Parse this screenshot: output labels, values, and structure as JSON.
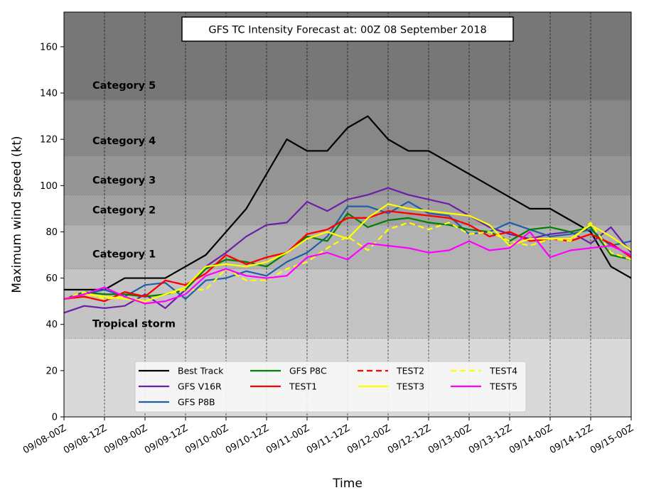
{
  "chart_data": {
    "type": "line",
    "title": "GFS TC Intensity Forecast at: 00Z 08 September 2018",
    "xlabel": "Time",
    "ylabel": "Maximum wind speed (kt)",
    "ylim": [
      0,
      175
    ],
    "yticks": [
      0,
      20,
      40,
      60,
      80,
      100,
      120,
      140,
      160
    ],
    "x": [
      "09/08-00Z",
      "09/08-06Z",
      "09/08-12Z",
      "09/08-18Z",
      "09/09-00Z",
      "09/09-06Z",
      "09/09-12Z",
      "09/09-18Z",
      "09/10-00Z",
      "09/10-06Z",
      "09/10-12Z",
      "09/10-18Z",
      "09/11-00Z",
      "09/11-06Z",
      "09/11-12Z",
      "09/11-18Z",
      "09/12-00Z",
      "09/12-06Z",
      "09/12-12Z",
      "09/12-18Z",
      "09/13-00Z",
      "09/13-06Z",
      "09/13-12Z",
      "09/13-18Z",
      "09/14-00Z",
      "09/14-06Z",
      "09/14-12Z",
      "09/14-18Z",
      "09/15-00Z"
    ],
    "xtick_labels": [
      "09/08-00Z",
      "09/08-12Z",
      "09/09-00Z",
      "09/09-12Z",
      "09/10-00Z",
      "09/10-12Z",
      "09/11-00Z",
      "09/11-12Z",
      "09/12-00Z",
      "09/12-12Z",
      "09/13-00Z",
      "09/13-12Z",
      "09/14-00Z",
      "09/14-12Z",
      "09/15-00Z"
    ],
    "grid": "vertical dashed at x ticks",
    "legend_position": "bottom-center",
    "intensity_bands": [
      {
        "label": "",
        "from": 0,
        "to": 34,
        "color": "#d9d9d9"
      },
      {
        "label": "Tropical storm",
        "from": 34,
        "to": 64,
        "color": "#c4c4c4"
      },
      {
        "label": "Category 1",
        "from": 64,
        "to": 83,
        "color": "#b2b2b2"
      },
      {
        "label": "Category 2",
        "from": 83,
        "to": 96,
        "color": "#a2a2a2"
      },
      {
        "label": "Category 3",
        "from": 96,
        "to": 113,
        "color": "#959595"
      },
      {
        "label": "Category 4",
        "from": 113,
        "to": 137,
        "color": "#878787"
      },
      {
        "label": "Category 5",
        "from": 137,
        "to": 175,
        "color": "#777777"
      }
    ],
    "series": [
      {
        "name": "Best Track",
        "color": "#000000",
        "dash": "solid",
        "values": [
          55,
          55,
          55,
          60,
          60,
          60,
          65,
          70,
          80,
          90,
          105,
          120,
          115,
          115,
          125,
          130,
          120,
          115,
          115,
          110,
          105,
          100,
          95,
          90,
          90,
          85,
          80,
          65,
          60
        ]
      },
      {
        "name": "GFS V16R",
        "color": "#6a1fa8",
        "dash": "solid",
        "values": [
          45,
          48,
          47,
          48,
          53,
          47,
          55,
          65,
          71,
          78,
          83,
          84,
          93,
          89,
          94,
          96,
          99,
          96,
          94,
          92,
          87,
          82,
          79,
          77,
          79,
          80,
          75,
          82,
          71
        ]
      },
      {
        "name": "GFS P8B",
        "color": "#1f5fa8",
        "dash": "solid",
        "values": [
          51,
          53,
          55,
          52,
          57,
          58,
          51,
          59,
          60,
          63,
          61,
          67,
          71,
          78,
          91,
          91,
          88,
          93,
          88,
          87,
          79,
          80,
          84,
          81,
          78,
          79,
          81,
          74,
          76
        ]
      },
      {
        "name": "GFS P8C",
        "color": "#008000",
        "dash": "solid",
        "values": [
          51,
          54,
          53,
          53,
          52,
          53,
          55,
          64,
          68,
          67,
          65,
          71,
          78,
          76,
          88,
          82,
          85,
          86,
          84,
          83,
          81,
          80,
          76,
          81,
          82,
          80,
          82,
          70,
          68
        ]
      },
      {
        "name": "TEST1",
        "color": "#ff0000",
        "dash": "solid",
        "values": [
          51,
          52,
          50,
          54,
          52,
          59,
          57,
          62,
          70,
          66,
          69,
          71,
          79,
          81,
          86,
          86,
          89,
          88,
          87,
          86,
          83,
          78,
          80,
          76,
          77,
          76,
          79,
          75,
          69
        ]
      },
      {
        "name": "TEST2",
        "color": "#ff0000",
        "dash": "dashed",
        "values": [
          51,
          52,
          50,
          54,
          52,
          59,
          57,
          62,
          70,
          66,
          69,
          71,
          79,
          81,
          86,
          86,
          89,
          88,
          87,
          86,
          83,
          78,
          80,
          76,
          77,
          76,
          79,
          75,
          69
        ]
      },
      {
        "name": "TEST3",
        "color": "#ffff00",
        "dash": "solid",
        "values": [
          51,
          53,
          52,
          51,
          50,
          53,
          56,
          65,
          66,
          65,
          67,
          71,
          77,
          80,
          77,
          86,
          92,
          90,
          89,
          88,
          87,
          83,
          74,
          77,
          77,
          77,
          83,
          78,
          72
        ]
      },
      {
        "name": "TEST4",
        "color": "#ffff00",
        "dash": "dashed",
        "values": [
          51,
          54,
          51,
          52,
          50,
          53,
          55,
          55,
          64,
          59,
          59,
          64,
          67,
          73,
          78,
          72,
          81,
          84,
          81,
          84,
          79,
          80,
          76,
          74,
          77,
          76,
          84,
          71,
          68
        ]
      },
      {
        "name": "TEST5",
        "color": "#ff00ff",
        "dash": "solid",
        "values": [
          51,
          53,
          56,
          52,
          49,
          50,
          53,
          61,
          64,
          61,
          60,
          61,
          69,
          71,
          68,
          75,
          74,
          73,
          71,
          72,
          76,
          72,
          73,
          80,
          69,
          72,
          73,
          74,
          70
        ]
      }
    ]
  }
}
